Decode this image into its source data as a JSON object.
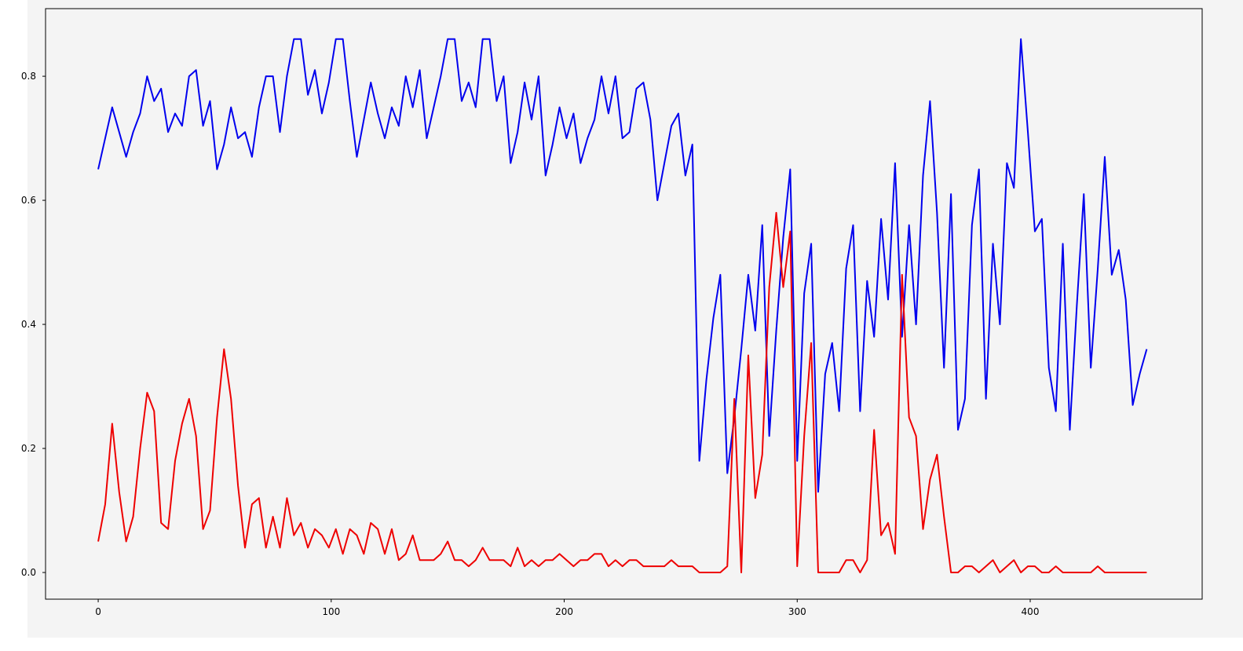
{
  "chart_data": {
    "type": "line",
    "x": [
      0,
      3,
      6,
      9,
      12,
      15,
      18,
      21,
      24,
      27,
      30,
      33,
      36,
      39,
      42,
      45,
      48,
      51,
      54,
      57,
      60,
      63,
      66,
      69,
      72,
      75,
      78,
      81,
      84,
      87,
      90,
      93,
      96,
      99,
      102,
      105,
      108,
      111,
      114,
      117,
      120,
      123,
      126,
      129,
      132,
      135,
      138,
      141,
      144,
      147,
      150,
      153,
      156,
      159,
      162,
      165,
      168,
      171,
      174,
      177,
      180,
      183,
      186,
      189,
      192,
      195,
      198,
      201,
      204,
      207,
      210,
      213,
      216,
      219,
      222,
      225,
      228,
      231,
      234,
      237,
      240,
      243,
      246,
      249,
      252,
      255,
      258,
      261,
      264,
      267,
      270,
      273,
      276,
      279,
      282,
      285,
      288,
      291,
      294,
      297,
      300,
      303,
      306,
      309,
      312,
      315,
      318,
      321,
      324,
      327,
      330,
      333,
      336,
      339,
      342,
      345,
      348,
      351,
      354,
      357,
      360,
      363,
      366,
      369,
      372,
      375,
      378,
      381,
      384,
      387,
      390,
      393,
      396,
      399,
      402,
      405,
      408,
      411,
      414,
      417,
      420,
      423,
      426,
      429,
      432,
      435,
      438,
      441,
      444,
      447,
      450
    ],
    "series": [
      {
        "color": "#0000ee",
        "values": [
          0.65,
          0.7,
          0.75,
          0.71,
          0.67,
          0.71,
          0.74,
          0.8,
          0.76,
          0.78,
          0.71,
          0.74,
          0.72,
          0.8,
          0.81,
          0.72,
          0.76,
          0.65,
          0.69,
          0.75,
          0.7,
          0.71,
          0.67,
          0.75,
          0.8,
          0.8,
          0.71,
          0.8,
          0.86,
          0.86,
          0.77,
          0.81,
          0.74,
          0.79,
          0.86,
          0.86,
          0.76,
          0.67,
          0.73,
          0.79,
          0.74,
          0.7,
          0.75,
          0.72,
          0.8,
          0.75,
          0.81,
          0.7,
          0.75,
          0.8,
          0.86,
          0.86,
          0.76,
          0.79,
          0.75,
          0.86,
          0.86,
          0.76,
          0.8,
          0.66,
          0.71,
          0.79,
          0.73,
          0.8,
          0.64,
          0.69,
          0.75,
          0.7,
          0.74,
          0.66,
          0.7,
          0.73,
          0.8,
          0.74,
          0.8,
          0.7,
          0.71,
          0.78,
          0.79,
          0.73,
          0.6,
          0.66,
          0.72,
          0.74,
          0.64,
          0.69,
          0.18,
          0.31,
          0.41,
          0.48,
          0.16,
          0.25,
          0.36,
          0.48,
          0.39,
          0.56,
          0.22,
          0.39,
          0.54,
          0.65,
          0.18,
          0.45,
          0.53,
          0.13,
          0.32,
          0.37,
          0.26,
          0.49,
          0.56,
          0.26,
          0.47,
          0.38,
          0.57,
          0.44,
          0.66,
          0.38,
          0.56,
          0.4,
          0.64,
          0.76,
          0.58,
          0.33,
          0.61,
          0.23,
          0.28,
          0.56,
          0.65,
          0.28,
          0.53,
          0.4,
          0.66,
          0.62,
          0.86,
          0.71,
          0.55,
          0.57,
          0.33,
          0.26,
          0.53,
          0.23,
          0.43,
          0.61,
          0.33,
          0.49,
          0.67,
          0.48,
          0.52,
          0.44,
          0.27,
          0.32,
          0.36
        ]
      },
      {
        "color": "#ee0000",
        "values": [
          0.05,
          0.11,
          0.24,
          0.13,
          0.05,
          0.09,
          0.2,
          0.29,
          0.26,
          0.08,
          0.07,
          0.18,
          0.24,
          0.28,
          0.22,
          0.07,
          0.1,
          0.25,
          0.36,
          0.28,
          0.14,
          0.04,
          0.11,
          0.12,
          0.04,
          0.09,
          0.04,
          0.12,
          0.06,
          0.08,
          0.04,
          0.07,
          0.06,
          0.04,
          0.07,
          0.03,
          0.07,
          0.06,
          0.03,
          0.08,
          0.07,
          0.03,
          0.07,
          0.02,
          0.03,
          0.06,
          0.02,
          0.02,
          0.02,
          0.03,
          0.05,
          0.02,
          0.02,
          0.01,
          0.02,
          0.04,
          0.02,
          0.02,
          0.02,
          0.01,
          0.04,
          0.01,
          0.02,
          0.01,
          0.02,
          0.02,
          0.03,
          0.02,
          0.01,
          0.02,
          0.02,
          0.03,
          0.03,
          0.01,
          0.02,
          0.01,
          0.02,
          0.02,
          0.01,
          0.01,
          0.01,
          0.01,
          0.02,
          0.01,
          0.01,
          0.01,
          0.0,
          0.0,
          0.0,
          0.0,
          0.01,
          0.28,
          0.0,
          0.35,
          0.12,
          0.19,
          0.46,
          0.58,
          0.46,
          0.55,
          0.01,
          0.22,
          0.37,
          0.0,
          0.0,
          0.0,
          0.0,
          0.02,
          0.02,
          0.0,
          0.02,
          0.23,
          0.06,
          0.08,
          0.03,
          0.48,
          0.25,
          0.22,
          0.07,
          0.15,
          0.19,
          0.09,
          0.0,
          0.0,
          0.01,
          0.01,
          0.0,
          0.01,
          0.02,
          0.0,
          0.01,
          0.02,
          0.0,
          0.01,
          0.01,
          0.0,
          0.0,
          0.01,
          0.0,
          0.0,
          0.0,
          0.0,
          0.0,
          0.01,
          0.0,
          0.0,
          0.0,
          0.0,
          0.0,
          0.0,
          0.0
        ]
      }
    ],
    "xlim": [
      -22.6,
      473.8
    ],
    "ylim": [
      -0.043,
      0.909
    ],
    "xticks": [
      0,
      100,
      200,
      300,
      400
    ],
    "yticks": [
      {
        "value": 0,
        "label": "0.0"
      },
      0.2,
      0.4,
      0.6,
      0.8
    ],
    "grid": false
  }
}
